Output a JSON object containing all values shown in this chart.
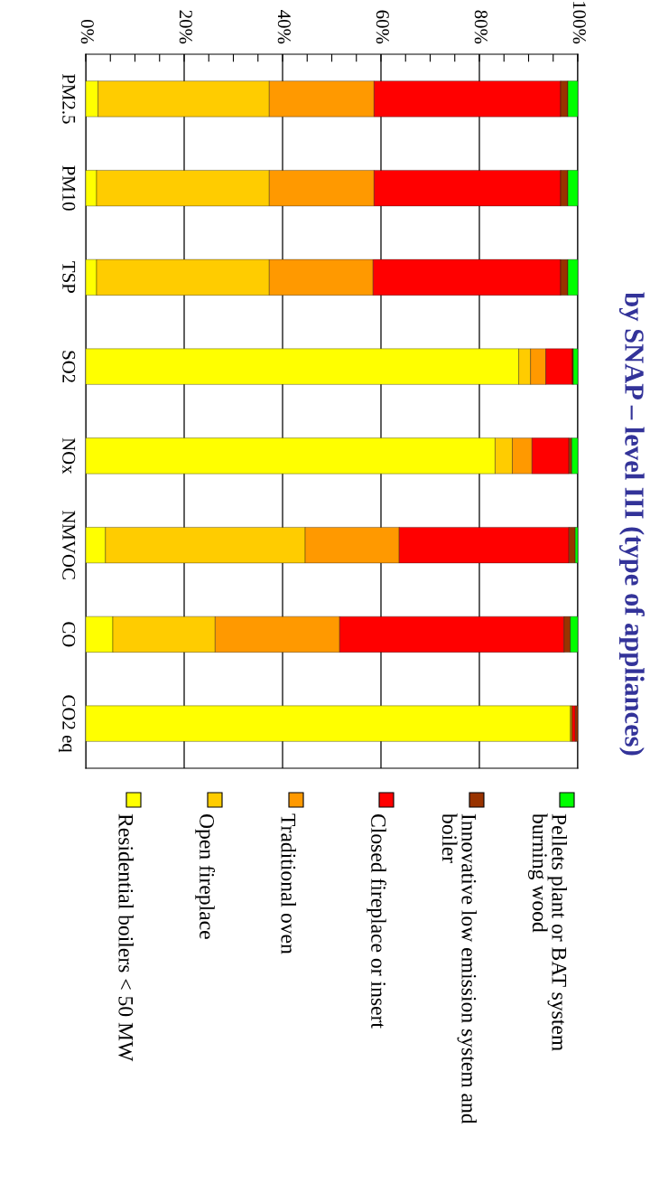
{
  "chart_data": {
    "type": "bar",
    "orientation": "horizontal",
    "stacked": true,
    "title": "by SNAP – level III (type of appliances)",
    "categories": [
      "PM2.5",
      "PM10",
      "TSP",
      "SO2",
      "NOx",
      "NMVOC",
      "CO",
      "CO2 eq"
    ],
    "series": [
      {
        "name": "Residential boilers < 50 MW",
        "color": "#ffff00",
        "values": [
          2.5,
          2.2,
          2.2,
          88.0,
          83.2,
          4.0,
          5.5,
          98.5
        ]
      },
      {
        "name": "Open fireplace",
        "color": "#ffcc00",
        "values": [
          34.8,
          35.1,
          35.1,
          2.4,
          3.5,
          40.6,
          20.8,
          0.2
        ]
      },
      {
        "name": "Traditional oven",
        "color": "#ff9900",
        "values": [
          21.3,
          21.3,
          21.1,
          3.1,
          4.0,
          19.1,
          25.3,
          0.2
        ]
      },
      {
        "name": "Closed fireplace or insert",
        "color": "#ff0000",
        "values": [
          37.9,
          37.9,
          38.1,
          5.4,
          7.5,
          34.5,
          45.6,
          0.6
        ]
      },
      {
        "name": "Innovative low emission system and boiler",
        "color": "#993300",
        "values": [
          1.5,
          1.5,
          1.5,
          0.2,
          0.6,
          1.3,
          1.3,
          0.5
        ]
      },
      {
        "name": "Pellets plant or BAT system burning wood",
        "color": "#00ff00",
        "values": [
          2.0,
          2.0,
          2.0,
          0.9,
          1.2,
          0.5,
          1.5,
          null
        ]
      }
    ],
    "xlim": [
      0,
      100
    ],
    "xticks": [
      {
        "value": 0,
        "label": "0%"
      },
      {
        "value": 5,
        "label": null
      },
      {
        "value": 10,
        "label": null
      },
      {
        "value": 15,
        "label": null
      },
      {
        "value": 20,
        "label": "20%"
      },
      {
        "value": 25,
        "label": null
      },
      {
        "value": 30,
        "label": null
      },
      {
        "value": 35,
        "label": null
      },
      {
        "value": 40,
        "label": "40%"
      },
      {
        "value": 45,
        "label": null
      },
      {
        "value": 50,
        "label": null
      },
      {
        "value": 55,
        "label": null
      },
      {
        "value": 60,
        "label": "60%"
      },
      {
        "value": 65,
        "label": null
      },
      {
        "value": 70,
        "label": null
      },
      {
        "value": 75,
        "label": null
      },
      {
        "value": 80,
        "label": "80%"
      },
      {
        "value": 85,
        "label": null
      },
      {
        "value": 90,
        "label": null
      },
      {
        "value": 95,
        "label": null
      },
      {
        "value": 100,
        "label": "100%"
      }
    ],
    "grid": "x",
    "legend": "bottom"
  }
}
